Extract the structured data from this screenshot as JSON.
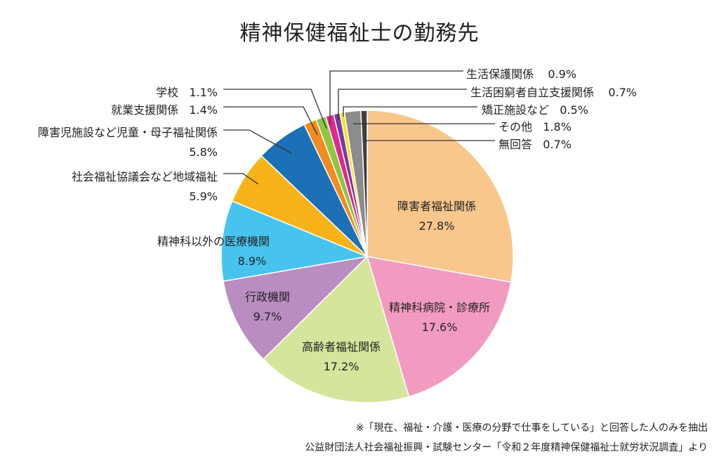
{
  "chart_data": {
    "type": "pie",
    "title": "精神保健福祉士の勤務先",
    "start": "12 o'clock, clockwise",
    "slices": [
      {
        "label": "障害者福祉関係",
        "value": 27.8,
        "display": "27.8%",
        "color": "#F9C68C"
      },
      {
        "label": "精神科病院・診療所",
        "value": 17.6,
        "display": "17.6%",
        "color": "#F29BC1"
      },
      {
        "label": "高齢者福祉関係",
        "value": 17.2,
        "display": "17.2%",
        "color": "#D5E59B"
      },
      {
        "label": "行政機関",
        "value": 9.7,
        "display": "9.7%",
        "color": "#B98DC1"
      },
      {
        "label": "精神科以外の医療機関",
        "value": 8.9,
        "display": "8.9%",
        "color": "#47C4EE"
      },
      {
        "label": "社会福祉協議会など地域福祉",
        "value": 5.9,
        "display": "5.9%",
        "color": "#F8B31A"
      },
      {
        "label": "障害児施設など児童・母子福祉関係",
        "value": 5.8,
        "display": "5.8%",
        "color": "#1B70B6"
      },
      {
        "label": "就業支援関係",
        "value": 1.4,
        "display": "1.4%",
        "color": "#F18B22"
      },
      {
        "label": "学校",
        "value": 1.1,
        "display": "1.1%",
        "color": "#8DC641"
      },
      {
        "label": "生活保護関係",
        "value": 0.9,
        "display": "0.9%",
        "color": "#E0288E"
      },
      {
        "label": "生活困窮者自立支援関係",
        "value": 0.7,
        "display": "0.7%",
        "color": "#7A3C9A"
      },
      {
        "label": "矯正施設など",
        "value": 0.5,
        "display": "0.5%",
        "color": "#F4E526"
      },
      {
        "label": "その他",
        "value": 1.8,
        "display": "1.8%",
        "color": "#8C8C8C"
      },
      {
        "label": "無回答",
        "value": 0.7,
        "display": "0.7%",
        "color": "#3F3F3F"
      }
    ]
  },
  "notes": {
    "line1": "※「現在、福祉・介護・医療の分野で仕事をしている」と回答した人のみを抽出",
    "line2": "公益財団法人社会福祉振興・試験センター「令和２年度精神保健福祉士就労状況調査」より"
  }
}
